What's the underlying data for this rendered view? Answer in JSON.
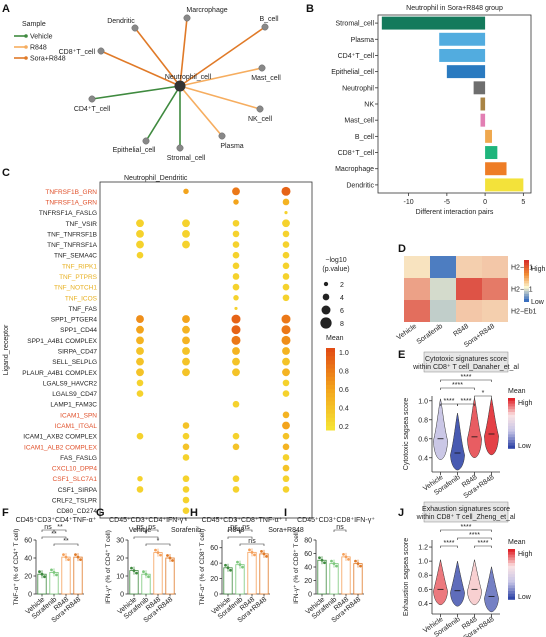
{
  "panel_letters": [
    "A",
    "B",
    "C",
    "D",
    "E",
    "F",
    "G",
    "H",
    "I",
    "J"
  ],
  "chart_data": [
    {
      "panel": "A",
      "type": "network",
      "legend_title": "Sample",
      "legend": [
        {
          "name": "Vehicle",
          "color": "#3f8a3f"
        },
        {
          "name": "R848",
          "color": "#f6ad5f"
        },
        {
          "name": "Sora+R848",
          "color": "#e07a28"
        }
      ],
      "center": "Neutrophil_cell",
      "nodes": [
        "Dendritic",
        "Marcrophage",
        "B_cell",
        "CD8⁺T_cell",
        "Mast_cell",
        "NK_cell",
        "CD4⁺T_cell",
        "Epithelial_cell",
        "Stromal_cell",
        "Plasma"
      ],
      "edges": [
        {
          "to": "Dendritic",
          "sample": "Sora+R848"
        },
        {
          "to": "Marcrophage",
          "sample": "Sora+R848"
        },
        {
          "to": "B_cell",
          "sample": "Sora+R848"
        },
        {
          "to": "CD8⁺T_cell",
          "sample": "Sora+R848"
        },
        {
          "to": "Mast_cell",
          "sample": "R848"
        },
        {
          "to": "NK_cell",
          "sample": "R848"
        },
        {
          "to": "CD4⁺T_cell",
          "sample": "Vehicle"
        },
        {
          "to": "Epithelial_cell",
          "sample": "Vehicle"
        },
        {
          "to": "Stromal_cell",
          "sample": "Vehicle"
        },
        {
          "to": "Plasma",
          "sample": "R848"
        }
      ]
    },
    {
      "panel": "B",
      "type": "bar",
      "title": "Neutrophil in Sora+R848 group",
      "xlabel": "Different interaction pairs",
      "xlim": [
        -14,
        6
      ],
      "xticks": [
        -10,
        -5,
        0,
        5
      ],
      "categories": [
        "Stromal_cell",
        "Plasma",
        "CD4⁺T_cell",
        "Epithelial_cell",
        "Neutrophil",
        "NK",
        "Mast_cell",
        "B_cell",
        "CD8⁺T_cell",
        "Macrophage",
        "Dendritic"
      ],
      "values": [
        -13.5,
        -6,
        -6,
        -5,
        -1.5,
        -0.6,
        -0.6,
        0.9,
        1.6,
        2.8,
        5
      ],
      "colors": [
        "#147a5c",
        "#52acdf",
        "#52acdf",
        "#2a7ac0",
        "#6e6e6e",
        "#a98445",
        "#e27fb3",
        "#efa84e",
        "#1fb57c",
        "#ee7d26",
        "#f3e23a"
      ]
    },
    {
      "panel": "C",
      "type": "scatter",
      "title": "Neutrophil_Dendritic",
      "ylabel": "Ligand_receptor",
      "categories": [
        "Vehicle",
        "Sorafenib",
        "R848",
        "Sora+R848"
      ],
      "rows": [
        {
          "label": "TNFRSF1B_GRN",
          "color": "#e0502a"
        },
        {
          "label": "TNFRSF1A_GRN",
          "color": "#e0502a"
        },
        {
          "label": "TNFRSF1A_FASLG",
          "color": "#222222"
        },
        {
          "label": "TNF_VSIR",
          "color": "#222222"
        },
        {
          "label": "TNF_TNFRSF1B",
          "color": "#222222"
        },
        {
          "label": "TNF_TNFRSF1A",
          "color": "#222222"
        },
        {
          "label": "TNF_SEMA4C",
          "color": "#222222"
        },
        {
          "label": "TNF_RIPK1",
          "color": "#e8b020"
        },
        {
          "label": "TNF_PTPRS",
          "color": "#e8b020"
        },
        {
          "label": "TNF_NOTCH1",
          "color": "#e8b020"
        },
        {
          "label": "TNF_ICOS",
          "color": "#e8b020"
        },
        {
          "label": "TNF_FAS",
          "color": "#222222"
        },
        {
          "label": "SPP1_PTGER4",
          "color": "#222222"
        },
        {
          "label": "SPP1_CD44",
          "color": "#222222"
        },
        {
          "label": "SPP1_A4B1 COMPLEX",
          "color": "#222222"
        },
        {
          "label": "SIRPA_CD47",
          "color": "#222222"
        },
        {
          "label": "SELL_SELPLG",
          "color": "#222222"
        },
        {
          "label": "PLAUR_A4B1 COMPLEX",
          "color": "#222222"
        },
        {
          "label": "LGALS9_HAVCR2",
          "color": "#222222"
        },
        {
          "label": "LGALS9_CD47",
          "color": "#222222"
        },
        {
          "label": "LAMP1_FAM3C",
          "color": "#222222"
        },
        {
          "label": "ICAM1_SPN",
          "color": "#e0502a"
        },
        {
          "label": "ICAM1_ITGAL",
          "color": "#e0502a"
        },
        {
          "label": "ICAM1_AXB2 COMPLEX",
          "color": "#222222"
        },
        {
          "label": "ICAM1_ALB2 COMPLEX",
          "color": "#e0502a"
        },
        {
          "label": "FAS_FASLG",
          "color": "#222222"
        },
        {
          "label": "CXCL10_DPP4",
          "color": "#e0502a"
        },
        {
          "label": "CSF1_SLC7A1",
          "color": "#e0502a"
        },
        {
          "label": "CSF1_SIRPA",
          "color": "#222222"
        },
        {
          "label": "CRLF2_TSLPR",
          "color": "#222222"
        },
        {
          "label": "CD80_CD274",
          "color": "#222222"
        }
      ],
      "points": [
        [
          null,
          [
            0.6,
            3
          ],
          [
            0.8,
            5
          ],
          [
            0.9,
            6
          ]
        ],
        [
          null,
          null,
          [
            0.6,
            3
          ],
          [
            0.5,
            4
          ]
        ],
        [
          null,
          null,
          null,
          [
            0.3,
            1
          ]
        ],
        [
          [
            0.3,
            5
          ],
          [
            0.3,
            5
          ],
          [
            0.3,
            4
          ],
          [
            0.3,
            5
          ]
        ],
        [
          [
            0.3,
            5
          ],
          [
            0.3,
            5
          ],
          [
            0.3,
            4
          ],
          [
            0.3,
            4
          ]
        ],
        [
          [
            0.3,
            5
          ],
          [
            0.3,
            5
          ],
          [
            0.3,
            4
          ],
          [
            0.3,
            4
          ]
        ],
        [
          [
            0.3,
            4
          ],
          null,
          [
            0.3,
            4
          ],
          [
            0.3,
            4
          ]
        ],
        [
          null,
          null,
          [
            0.3,
            4
          ],
          [
            0.3,
            4
          ]
        ],
        [
          null,
          null,
          [
            0.3,
            4
          ],
          [
            0.3,
            4
          ]
        ],
        [
          null,
          null,
          [
            0.3,
            4
          ],
          [
            0.3,
            4
          ]
        ],
        [
          null,
          null,
          [
            0.3,
            3
          ],
          [
            0.3,
            4
          ]
        ],
        [
          null,
          null,
          [
            0.3,
            1
          ],
          null
        ],
        [
          [
            0.7,
            5
          ],
          [
            0.6,
            5
          ],
          [
            0.9,
            6
          ],
          [
            0.8,
            6
          ]
        ],
        [
          [
            0.6,
            5
          ],
          [
            0.5,
            5
          ],
          [
            0.9,
            6
          ],
          [
            0.8,
            6
          ]
        ],
        [
          [
            0.5,
            5
          ],
          [
            0.5,
            5
          ],
          [
            0.8,
            6
          ],
          [
            0.7,
            6
          ]
        ],
        [
          [
            0.4,
            5
          ],
          [
            0.4,
            5
          ],
          [
            0.5,
            5
          ],
          [
            0.5,
            5
          ]
        ],
        [
          [
            0.4,
            5
          ],
          [
            0.4,
            5
          ],
          [
            0.4,
            5
          ],
          [
            0.4,
            5
          ]
        ],
        [
          [
            0.4,
            5
          ],
          [
            0.4,
            5
          ],
          [
            0.4,
            5
          ],
          [
            0.5,
            5
          ]
        ],
        [
          [
            0.3,
            4
          ],
          null,
          null,
          [
            0.3,
            4
          ]
        ],
        [
          [
            0.3,
            4
          ],
          null,
          null,
          [
            0.3,
            4
          ]
        ],
        [
          null,
          null,
          [
            0.3,
            4
          ],
          null
        ],
        [
          null,
          null,
          null,
          [
            0.5,
            4
          ]
        ],
        [
          null,
          [
            0.4,
            4
          ],
          null,
          [
            0.6,
            5
          ]
        ],
        [
          [
            0.3,
            4
          ],
          [
            0.3,
            4
          ],
          [
            0.3,
            4
          ],
          [
            0.4,
            4
          ]
        ],
        [
          null,
          [
            0.4,
            4
          ],
          [
            0.4,
            4
          ],
          [
            0.5,
            4
          ]
        ],
        [
          null,
          [
            0.3,
            4
          ],
          null,
          [
            0.3,
            4
          ]
        ],
        [
          null,
          null,
          null,
          [
            0.4,
            4
          ]
        ],
        [
          [
            0.3,
            3
          ],
          [
            0.3,
            4
          ],
          [
            0.3,
            4
          ],
          [
            0.3,
            4
          ]
        ],
        [
          [
            0.3,
            4
          ],
          [
            0.3,
            4
          ],
          [
            0.3,
            4
          ],
          [
            0.3,
            4
          ]
        ],
        [
          null,
          [
            0.3,
            4
          ],
          null,
          null
        ],
        [
          null,
          [
            0.3,
            4
          ],
          null,
          null
        ]
      ],
      "size_legend_title": "−log10\n(p.value)",
      "size_legend": [
        "2",
        "4",
        "6",
        "8"
      ],
      "color_legend_title": "Mean",
      "color_legend_ticks": [
        "1.0",
        "0.8",
        "0.6",
        "0.4",
        "0.2"
      ],
      "color_range": [
        0.2,
        1.0
      ]
    },
    {
      "panel": "D",
      "type": "heatmap",
      "categories": [
        "Vehicle",
        "Sorafenib",
        "R848",
        "Sora+R848"
      ],
      "rows": [
        "H2−D1",
        "H2−K1",
        "H2−Eb1"
      ],
      "values": [
        [
          0.55,
          0.05,
          0.6,
          0.62
        ],
        [
          0.72,
          0.4,
          0.92,
          0.82
        ],
        [
          0.85,
          0.35,
          0.62,
          0.6
        ]
      ],
      "legend_high": "High",
      "legend_low": "Low"
    },
    {
      "panel": "E",
      "type": "violin",
      "title": "Cytotoxic signatures score\nwithin CD8⁺ T cell_Danaher_et_al",
      "ylabel": "Cytotoxic sagsea score",
      "categories": [
        "Vehicle",
        "Sorafenib",
        "R848",
        "Sora+R848"
      ],
      "yticks": [
        "0.4",
        "0.6",
        "0.8",
        "1.0"
      ],
      "ylim": [
        0.25,
        1.05
      ],
      "medians": [
        0.6,
        0.45,
        0.62,
        0.65
      ],
      "fill_values": [
        0.35,
        0.05,
        0.9,
        0.95
      ],
      "significance": [
        "****",
        "****",
        "*",
        "****",
        "****"
      ],
      "legend_title": "Mean",
      "legend_high": "High",
      "legend_low": "Low"
    },
    {
      "panel": "F",
      "type": "bar",
      "title": "CD45⁺CD3⁺CD4⁺TNF-α⁺",
      "ylabel": "TNF-α⁺ (% of CD4⁺ T cell)",
      "categories": [
        "Vehicle",
        "Sorafenib",
        "R848",
        "Sora+R848"
      ],
      "yticks": [
        "0",
        "20",
        "40",
        "60"
      ],
      "ylim": [
        0,
        60
      ],
      "values": [
        22,
        24,
        41,
        41
      ],
      "significance": [
        "ns",
        "**",
        "**",
        "**"
      ]
    },
    {
      "panel": "G",
      "type": "bar",
      "title": "CD45⁺CD3⁺CD4⁺IFN-γ⁺",
      "ylabel": "IFN-γ⁺ (% of CD4⁺ T cell)",
      "categories": [
        "Vehicle",
        "Sorafenib",
        "R848",
        "Sora+R848"
      ],
      "yticks": [
        "0",
        "10",
        "20",
        "30"
      ],
      "ylim": [
        0,
        30
      ],
      "values": [
        13,
        11,
        23,
        20
      ],
      "significance": [
        "ns",
        "ns",
        "*",
        "*"
      ]
    },
    {
      "panel": "H",
      "type": "bar",
      "title": "CD45⁺CD3⁺CD8⁺TNF-α⁺",
      "ylabel": "TNF-α⁺ (% of CD8⁺ T cell)",
      "categories": [
        "Vehicle",
        "Sorafenib",
        "R848",
        "Sora+R848"
      ],
      "yticks": [
        "0",
        "20",
        "40",
        "60"
      ],
      "ylim": [
        0,
        70
      ],
      "values": [
        34,
        38,
        54,
        52
      ],
      "significance": [
        "ns",
        "ns",
        "*",
        "ns"
      ]
    },
    {
      "panel": "I",
      "type": "bar",
      "title": "CD45⁺CD3⁺CD8⁺IFN-γ⁺",
      "ylabel": "IFN-γ⁺ (% of CD8⁺ T cell)",
      "categories": [
        "Vehicle",
        "Sorafenib",
        "R848",
        "Sora+R848"
      ],
      "yticks": [
        "0",
        "20",
        "40",
        "60",
        "80"
      ],
      "ylim": [
        0,
        80
      ],
      "values": [
        50,
        45,
        55,
        45
      ],
      "significance": [
        "ns"
      ]
    },
    {
      "panel": "J",
      "type": "violin",
      "title": "Exhaustion signatures score\nwithin CD8⁺ T cell_Zheng_et_al",
      "ylabel": "Exhaustion sagsea score",
      "categories": [
        "Vehicle",
        "Sorafenib",
        "R848",
        "Sora+R848"
      ],
      "yticks": [
        "0.4",
        "0.6",
        "0.8",
        "1.0",
        "1.2"
      ],
      "ylim": [
        0.25,
        1.3
      ],
      "medians": [
        0.6,
        0.58,
        0.6,
        0.5
      ],
      "fill_values": [
        0.85,
        0.1,
        0.7,
        0.15
      ],
      "significance": [
        "****",
        "****",
        "****",
        "****"
      ],
      "legend_title": "Mean",
      "legend_high": "High",
      "legend_low": "Low"
    }
  ]
}
